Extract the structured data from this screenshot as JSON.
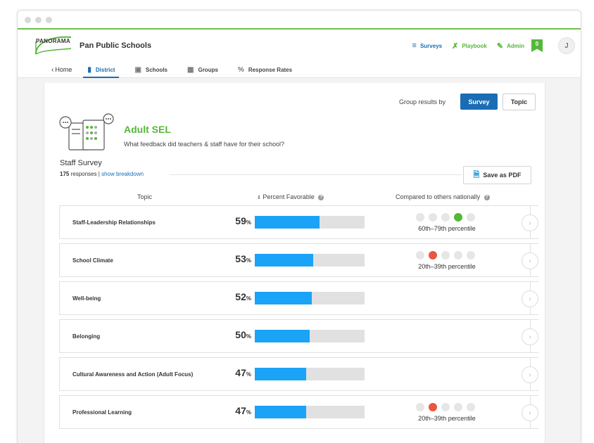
{
  "app": {
    "logo_text": "PANORAMA",
    "org_name": "Pan Public Schools",
    "accent": "#55b839",
    "primary": "#1a6db5"
  },
  "top_links": [
    {
      "label": "Surveys",
      "icon": "list-icon",
      "color": "#1a6db5"
    },
    {
      "label": "Playbook",
      "icon": "playbook-icon",
      "color": "#55b839"
    },
    {
      "label": "Admin",
      "icon": "pencil-icon",
      "color": "#55b839"
    }
  ],
  "badge_count": "0",
  "avatar_initial": "J",
  "nav": {
    "home": "Home",
    "items": [
      {
        "label": "District",
        "icon": "bar-chart-icon",
        "active": true
      },
      {
        "label": "Schools",
        "icon": "building-icon",
        "active": false
      },
      {
        "label": "Groups",
        "icon": "groups-icon",
        "active": false
      },
      {
        "label": "Response Rates",
        "icon": "percent-icon",
        "active": false
      }
    ]
  },
  "group_by": {
    "label": "Group results by",
    "survey_btn": "Survey",
    "topic_btn": "Topic"
  },
  "survey": {
    "title": "Adult SEL",
    "subtitle": "What feedback did teachers & staff have for their school?",
    "name": "Staff Survey",
    "responses_count": "175",
    "responses_word": "responses",
    "separator": "|",
    "breakdown_link": "show breakdown",
    "save_pdf": "Save as PDF"
  },
  "columns": {
    "topic": "Topic",
    "percent": "Percent Favorable",
    "compared": "Compared to others nationally"
  },
  "rows": [
    {
      "topic": "Staff-Leadership Relationships",
      "percent": 59,
      "percentile_index": 3,
      "percentile_label": "60th–79th percentile",
      "dot_color": "#55b839"
    },
    {
      "topic": "School Climate",
      "percent": 53,
      "percentile_index": 1,
      "percentile_label": "20th–39th percentile",
      "dot_color": "#e8563f"
    },
    {
      "topic": "Well-being",
      "percent": 52,
      "percentile_index": null,
      "percentile_label": "",
      "dot_color": ""
    },
    {
      "topic": "Belonging",
      "percent": 50,
      "percentile_index": null,
      "percentile_label": "",
      "dot_color": ""
    },
    {
      "topic": "Cultural Awareness and Action (Adult Focus)",
      "percent": 47,
      "percentile_index": null,
      "percentile_label": "",
      "dot_color": ""
    },
    {
      "topic": "Professional Learning",
      "percent": 47,
      "percentile_index": 1,
      "percentile_label": "20th–39th percentile",
      "dot_color": "#e8563f"
    }
  ],
  "percent_symbol": "%"
}
